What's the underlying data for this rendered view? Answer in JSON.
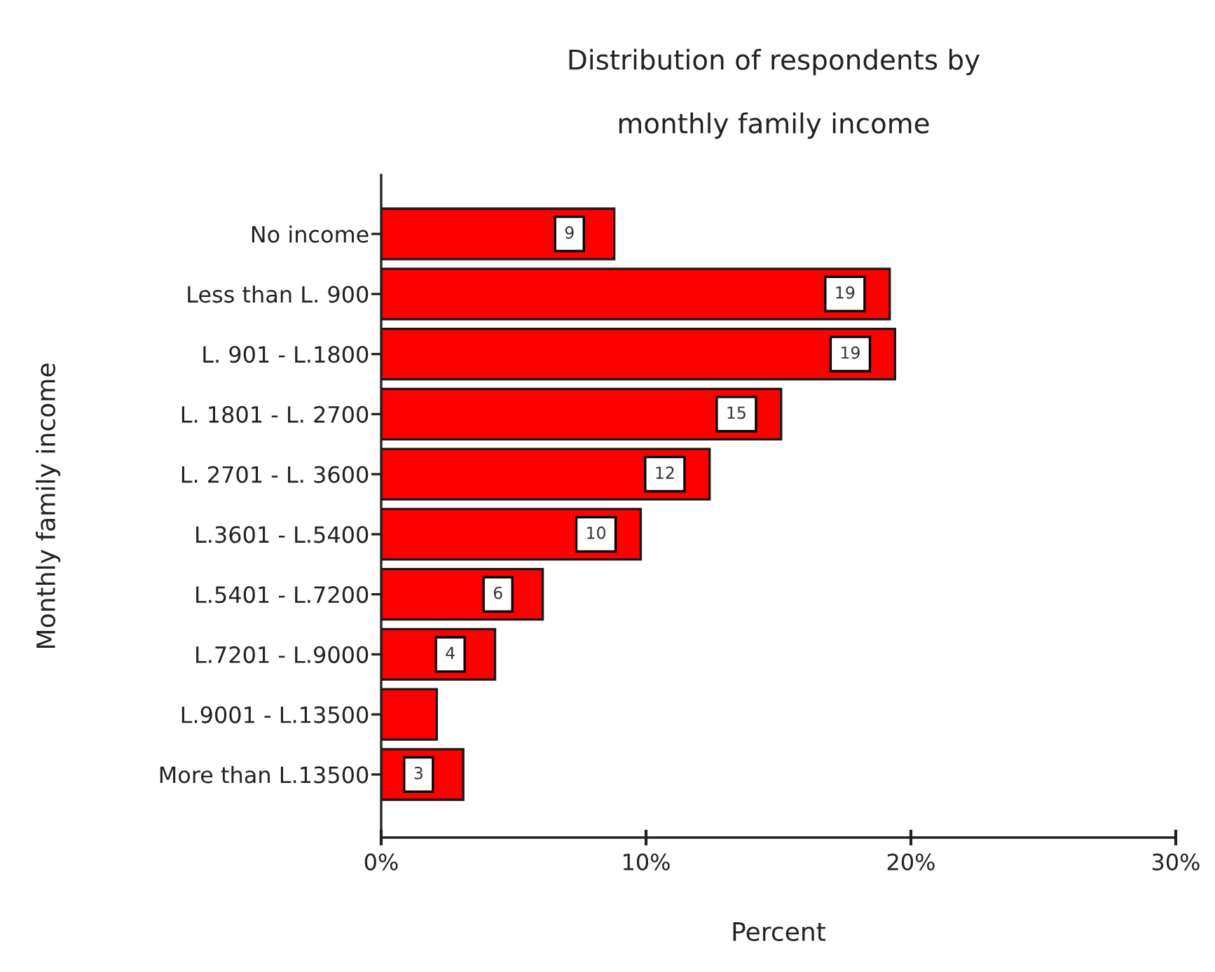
{
  "chart_data": {
    "type": "bar",
    "orientation": "horizontal",
    "title": "Distribution of respondents by\nmonthly family income",
    "xlabel": "Percent",
    "ylabel": "Monthly family income",
    "categories": [
      "No income",
      "Less than L. 900",
      "L. 901 - L.1800",
      "L. 1801 - L. 2700",
      "L. 2701 - L. 3600",
      "L.3601 - L.5400",
      "L.5401 - L.7200",
      "L.7201 - L.9000",
      "L.9001 - L.13500",
      "More than L.13500"
    ],
    "values": [
      8.8,
      19.2,
      19.4,
      15.1,
      12.4,
      9.8,
      6.1,
      4.3,
      2.1,
      3.1
    ],
    "value_labels": [
      "9",
      "19",
      "19",
      "15",
      "12",
      "10",
      "6",
      "4",
      null,
      "3"
    ],
    "color": "#ff0000",
    "xlim": [
      0,
      30
    ],
    "xticks": [
      {
        "value": 0,
        "label": "0%"
      },
      {
        "value": 10,
        "label": "10%"
      },
      {
        "value": 20,
        "label": "20%"
      },
      {
        "value": 30,
        "label": "30%"
      }
    ],
    "grid": false,
    "legend": false
  }
}
